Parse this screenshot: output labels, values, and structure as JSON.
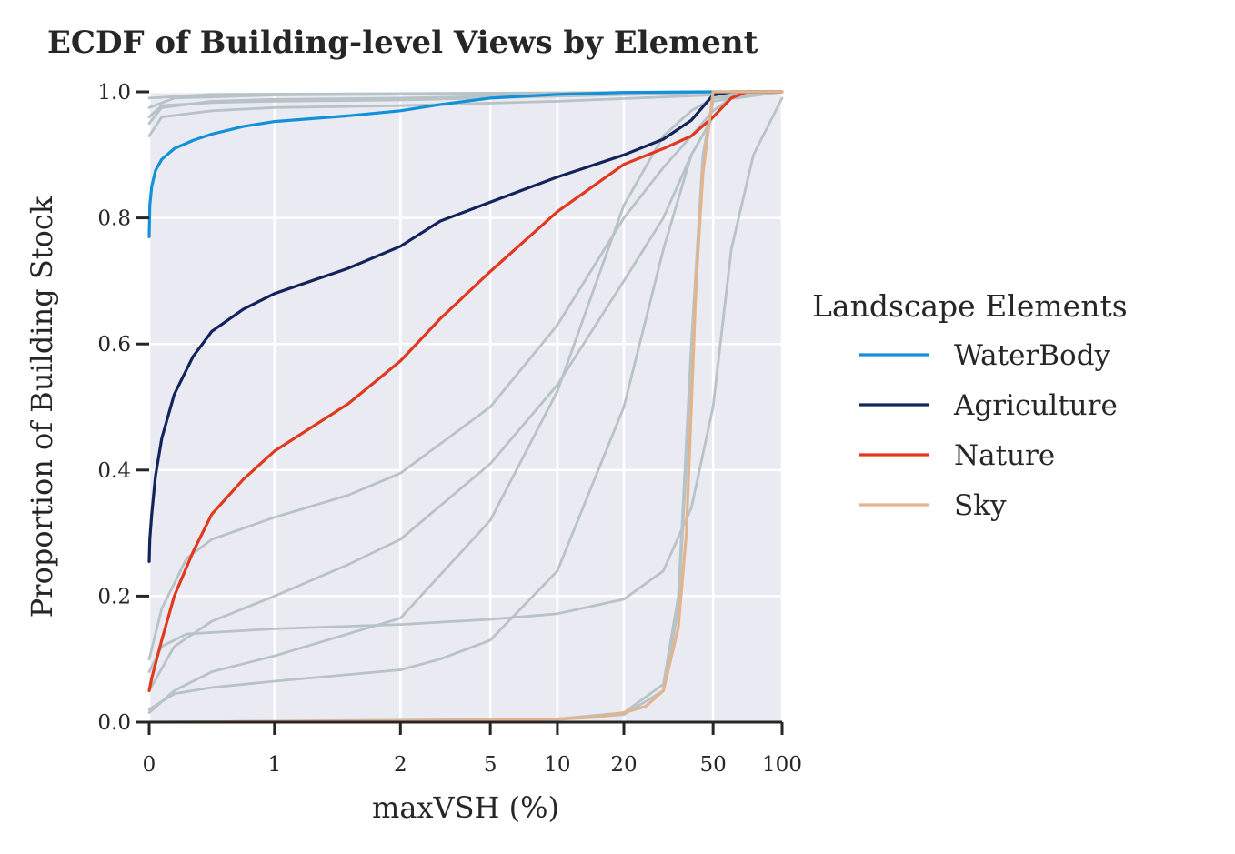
{
  "chart_data": {
    "type": "line",
    "title": "ECDF of Building-level Views by Element",
    "xlabel": "maxVSH (%)",
    "ylabel": "Proportion of Building Stock",
    "xlim": [
      0,
      100
    ],
    "ylim": [
      0,
      1
    ],
    "x_scale": "piecewise (nonlinear: 0,1,2,5,10,20,50,100)",
    "x_ticks": [
      0,
      1,
      2,
      5,
      10,
      20,
      50,
      100
    ],
    "x_tick_labels": [
      "0",
      "1",
      "2",
      "5",
      "10",
      "20",
      "50",
      "100"
    ],
    "y_ticks": [
      0.0,
      0.2,
      0.4,
      0.6,
      0.8,
      1.0
    ],
    "y_tick_labels": [
      "0.0",
      "0.2",
      "0.4",
      "0.6",
      "0.8",
      "1.0"
    ],
    "grid": true,
    "background_color": "#eaeaf2",
    "legend": {
      "title": "Landscape Elements",
      "placement": "right outside",
      "entries": [
        {
          "label": "WaterBody",
          "color": "#1391d8"
        },
        {
          "label": "Agriculture",
          "color": "#13245a"
        },
        {
          "label": "Nature",
          "color": "#e0391e"
        },
        {
          "label": "Sky",
          "color": "#e3b48b"
        }
      ]
    },
    "series": [
      {
        "name": "WaterBody",
        "color": "#1391d8",
        "highlight": true,
        "points": [
          [
            0,
            0.77
          ],
          [
            0.005,
            0.82
          ],
          [
            0.02,
            0.85
          ],
          [
            0.05,
            0.875
          ],
          [
            0.1,
            0.893
          ],
          [
            0.2,
            0.91
          ],
          [
            0.35,
            0.923
          ],
          [
            0.5,
            0.933
          ],
          [
            0.75,
            0.945
          ],
          [
            1,
            0.953
          ],
          [
            1.5,
            0.962
          ],
          [
            2,
            0.97
          ],
          [
            3,
            0.98
          ],
          [
            5,
            0.99
          ],
          [
            10,
            0.996
          ],
          [
            20,
            0.999
          ],
          [
            50,
            1.0
          ],
          [
            100,
            1.0
          ]
        ]
      },
      {
        "name": "Agriculture",
        "color": "#13245a",
        "highlight": true,
        "points": [
          [
            0,
            0.255
          ],
          [
            0.005,
            0.29
          ],
          [
            0.02,
            0.33
          ],
          [
            0.05,
            0.39
          ],
          [
            0.1,
            0.45
          ],
          [
            0.2,
            0.52
          ],
          [
            0.35,
            0.58
          ],
          [
            0.5,
            0.62
          ],
          [
            0.75,
            0.655
          ],
          [
            1,
            0.68
          ],
          [
            1.5,
            0.72
          ],
          [
            2,
            0.755
          ],
          [
            3,
            0.795
          ],
          [
            5,
            0.825
          ],
          [
            10,
            0.865
          ],
          [
            20,
            0.9
          ],
          [
            30,
            0.925
          ],
          [
            40,
            0.955
          ],
          [
            50,
            0.995
          ],
          [
            60,
            1.0
          ],
          [
            100,
            1.0
          ]
        ]
      },
      {
        "name": "Nature",
        "color": "#e0391e",
        "highlight": true,
        "points": [
          [
            0,
            0.05
          ],
          [
            0.02,
            0.07
          ],
          [
            0.1,
            0.13
          ],
          [
            0.2,
            0.2
          ],
          [
            0.35,
            0.27
          ],
          [
            0.5,
            0.33
          ],
          [
            0.75,
            0.385
          ],
          [
            1,
            0.43
          ],
          [
            1.5,
            0.505
          ],
          [
            2,
            0.573
          ],
          [
            3,
            0.64
          ],
          [
            5,
            0.715
          ],
          [
            10,
            0.81
          ],
          [
            20,
            0.885
          ],
          [
            30,
            0.91
          ],
          [
            40,
            0.93
          ],
          [
            50,
            0.96
          ],
          [
            60,
            0.99
          ],
          [
            70,
            1.0
          ],
          [
            100,
            1.0
          ]
        ]
      },
      {
        "name": "Sky",
        "color": "#e3b48b",
        "highlight": true,
        "points": [
          [
            0,
            0.0
          ],
          [
            2,
            0.002
          ],
          [
            5,
            0.003
          ],
          [
            10,
            0.005
          ],
          [
            15,
            0.008
          ],
          [
            20,
            0.015
          ],
          [
            25,
            0.025
          ],
          [
            30,
            0.05
          ],
          [
            35,
            0.15
          ],
          [
            38,
            0.3
          ],
          [
            40,
            0.5
          ],
          [
            42,
            0.7
          ],
          [
            45,
            0.87
          ],
          [
            48,
            0.95
          ],
          [
            50,
            1.0
          ],
          [
            100,
            1.0
          ]
        ]
      },
      {
        "name": "",
        "color": "#b7c3c6",
        "highlight": false,
        "points": [
          [
            0,
            0.95
          ],
          [
            0.1,
            0.975
          ],
          [
            0.5,
            0.985
          ],
          [
            1,
            0.988
          ],
          [
            2,
            0.99
          ],
          [
            10,
            0.995
          ],
          [
            50,
            0.999
          ],
          [
            100,
            1.0
          ]
        ]
      },
      {
        "name": "",
        "color": "#b7c3c6",
        "highlight": false,
        "points": [
          [
            0,
            0.96
          ],
          [
            0.1,
            0.978
          ],
          [
            0.5,
            0.983
          ],
          [
            1,
            0.985
          ],
          [
            2,
            0.987
          ],
          [
            10,
            0.993
          ],
          [
            50,
            0.999
          ],
          [
            100,
            1.0
          ]
        ]
      },
      {
        "name": "",
        "color": "#b7c3c6",
        "highlight": false,
        "points": [
          [
            0,
            0.93
          ],
          [
            0.1,
            0.96
          ],
          [
            0.5,
            0.97
          ],
          [
            1,
            0.975
          ],
          [
            2,
            0.978
          ],
          [
            10,
            0.985
          ],
          [
            50,
            0.995
          ],
          [
            100,
            1.0
          ]
        ]
      },
      {
        "name": "",
        "color": "#b7c3c6",
        "highlight": false,
        "points": [
          [
            0,
            0.975
          ],
          [
            0.2,
            0.99
          ],
          [
            1,
            0.995
          ],
          [
            5,
            0.997
          ],
          [
            50,
            0.999
          ],
          [
            100,
            1.0
          ]
        ]
      },
      {
        "name": "",
        "color": "#b7c3c6",
        "highlight": false,
        "points": [
          [
            0,
            0.99
          ],
          [
            0.5,
            0.996
          ],
          [
            5,
            0.998
          ],
          [
            50,
            1.0
          ],
          [
            100,
            1.0
          ]
        ]
      },
      {
        "name": "",
        "color": "#b7c3c6",
        "highlight": false,
        "points": [
          [
            0,
            0.08
          ],
          [
            0.1,
            0.12
          ],
          [
            0.3,
            0.14
          ],
          [
            1,
            0.148
          ],
          [
            2,
            0.155
          ],
          [
            5,
            0.163
          ],
          [
            10,
            0.172
          ],
          [
            20,
            0.195
          ],
          [
            30,
            0.24
          ],
          [
            40,
            0.34
          ],
          [
            50,
            0.5
          ],
          [
            60,
            0.75
          ],
          [
            75,
            0.9
          ],
          [
            100,
            0.99
          ]
        ]
      },
      {
        "name": "",
        "color": "#b7c3c6",
        "highlight": false,
        "points": [
          [
            0,
            0.1
          ],
          [
            0.1,
            0.18
          ],
          [
            0.3,
            0.26
          ],
          [
            0.5,
            0.29
          ],
          [
            1,
            0.325
          ],
          [
            1.5,
            0.36
          ],
          [
            2,
            0.395
          ],
          [
            5,
            0.5
          ],
          [
            10,
            0.63
          ],
          [
            20,
            0.8
          ],
          [
            30,
            0.88
          ],
          [
            40,
            0.93
          ],
          [
            50,
            0.97
          ],
          [
            60,
            0.99
          ],
          [
            100,
            1.0
          ]
        ]
      },
      {
        "name": "",
        "color": "#b7c3c6",
        "highlight": false,
        "points": [
          [
            0,
            0.05
          ],
          [
            0.2,
            0.12
          ],
          [
            0.5,
            0.16
          ],
          [
            1,
            0.2
          ],
          [
            1.5,
            0.25
          ],
          [
            2,
            0.29
          ],
          [
            5,
            0.41
          ],
          [
            10,
            0.535
          ],
          [
            20,
            0.7
          ],
          [
            30,
            0.8
          ],
          [
            40,
            0.9
          ],
          [
            50,
            0.96
          ],
          [
            60,
            0.99
          ],
          [
            100,
            1.0
          ]
        ]
      },
      {
        "name": "",
        "color": "#b7c3c6",
        "highlight": false,
        "points": [
          [
            0,
            0.015
          ],
          [
            0.2,
            0.05
          ],
          [
            0.5,
            0.08
          ],
          [
            1,
            0.105
          ],
          [
            2,
            0.165
          ],
          [
            5,
            0.32
          ],
          [
            10,
            0.525
          ],
          [
            20,
            0.82
          ],
          [
            30,
            0.93
          ],
          [
            40,
            0.97
          ],
          [
            50,
            0.99
          ],
          [
            100,
            1.0
          ]
        ]
      },
      {
        "name": "",
        "color": "#b7c3c6",
        "highlight": false,
        "points": [
          [
            0,
            0.02
          ],
          [
            0.2,
            0.045
          ],
          [
            0.5,
            0.055
          ],
          [
            1,
            0.065
          ],
          [
            2,
            0.083
          ],
          [
            3,
            0.1
          ],
          [
            5,
            0.13
          ],
          [
            10,
            0.24
          ],
          [
            20,
            0.5
          ],
          [
            30,
            0.75
          ],
          [
            40,
            0.9
          ],
          [
            50,
            0.96
          ],
          [
            60,
            0.99
          ],
          [
            100,
            1.0
          ]
        ]
      },
      {
        "name": "",
        "color": "#b7c3c6",
        "highlight": false,
        "points": [
          [
            0,
            0.0
          ],
          [
            10,
            0.005
          ],
          [
            20,
            0.015
          ],
          [
            30,
            0.06
          ],
          [
            35,
            0.2
          ],
          [
            40,
            0.6
          ],
          [
            45,
            0.9
          ],
          [
            50,
            0.99
          ],
          [
            100,
            1.0
          ]
        ]
      },
      {
        "name": "",
        "color": "#b7c3c6",
        "highlight": false,
        "points": [
          [
            0,
            0.0
          ],
          [
            10,
            0.004
          ],
          [
            20,
            0.012
          ],
          [
            30,
            0.05
          ],
          [
            35,
            0.18
          ],
          [
            40,
            0.55
          ],
          [
            45,
            0.88
          ],
          [
            50,
            0.985
          ],
          [
            100,
            1.0
          ]
        ]
      }
    ]
  }
}
